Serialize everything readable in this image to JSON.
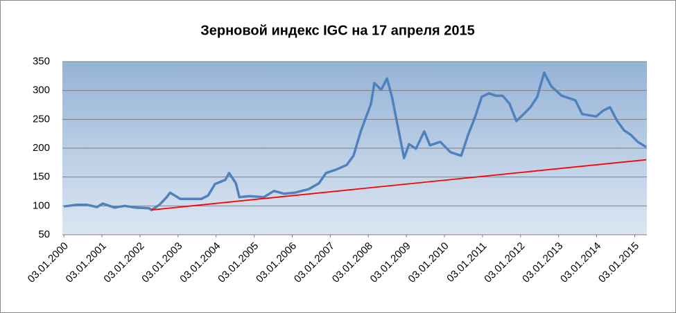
{
  "chart_data": {
    "type": "line",
    "title": "Зерновой индекс IGC на 17 апреля 2015",
    "xlim": [
      1999.96,
      2015.32
    ],
    "xticks": [
      {
        "value": 2000,
        "label": "03.01.2000"
      },
      {
        "value": 2001,
        "label": "03.01.2001"
      },
      {
        "value": 2002,
        "label": "03.01.2002"
      },
      {
        "value": 2003,
        "label": "03.01.2003"
      },
      {
        "value": 2004,
        "label": "03.01.2004"
      },
      {
        "value": 2005,
        "label": "03.01.2005"
      },
      {
        "value": 2006,
        "label": "03.01.2006"
      },
      {
        "value": 2007,
        "label": "03.01.2007"
      },
      {
        "value": 2008,
        "label": "03.01.2008"
      },
      {
        "value": 2009,
        "label": "03.01.2009"
      },
      {
        "value": 2010,
        "label": "03.01.2010"
      },
      {
        "value": 2011,
        "label": "03.01.2011"
      },
      {
        "value": 2012,
        "label": "03.01.2012"
      },
      {
        "value": 2013,
        "label": "03.01.2013"
      },
      {
        "value": 2014,
        "label": "03.01.2014"
      },
      {
        "value": 2015,
        "label": "03.01.2015"
      }
    ],
    "ylim": [
      50,
      350
    ],
    "yticks": [
      50,
      100,
      150,
      200,
      250,
      300,
      350
    ],
    "grid": true,
    "series": [
      {
        "color": "#4f81bd",
        "x": [
          2000.0,
          2000.33,
          2000.6,
          2000.87,
          2001.02,
          2001.33,
          2001.6,
          2001.88,
          2002.24,
          2002.3,
          2002.51,
          2002.7,
          2002.79,
          2003.06,
          2003.61,
          2003.79,
          2003.97,
          2004.24,
          2004.34,
          2004.52,
          2004.61,
          2004.88,
          2005.25,
          2005.52,
          2005.79,
          2006.07,
          2006.43,
          2006.7,
          2006.89,
          2007.16,
          2007.43,
          2007.61,
          2007.8,
          2008.07,
          2008.16,
          2008.34,
          2008.49,
          2008.62,
          2008.8,
          2008.94,
          2009.07,
          2009.25,
          2009.47,
          2009.62,
          2009.89,
          2010.16,
          2010.44,
          2010.62,
          2010.8,
          2010.98,
          2011.17,
          2011.35,
          2011.53,
          2011.71,
          2011.89,
          2012.08,
          2012.26,
          2012.44,
          2012.62,
          2012.81,
          2013.08,
          2013.44,
          2013.62,
          2013.99,
          2014.17,
          2014.35,
          2014.54,
          2014.72,
          2014.9,
          2015.08,
          2015.3
        ],
        "values": [
          99,
          102,
          102,
          98,
          104,
          97,
          100,
          97,
          96,
          93,
          102,
          115,
          123,
          112,
          112,
          118,
          138,
          145,
          157,
          139,
          115,
          117,
          115,
          126,
          121,
          123,
          129,
          139,
          157,
          163,
          171,
          187,
          229,
          277,
          313,
          301,
          321,
          289,
          229,
          183,
          207,
          199,
          229,
          205,
          211,
          193,
          187,
          223,
          253,
          289,
          295,
          291,
          291,
          277,
          247,
          259,
          271,
          289,
          331,
          307,
          291,
          283,
          259,
          255,
          265,
          271,
          247,
          231,
          223,
          211,
          202
        ]
      },
      {
        "color": "#ff0000",
        "x": [
          2002.3,
          2015.3
        ],
        "values": [
          93,
          180
        ]
      }
    ]
  }
}
